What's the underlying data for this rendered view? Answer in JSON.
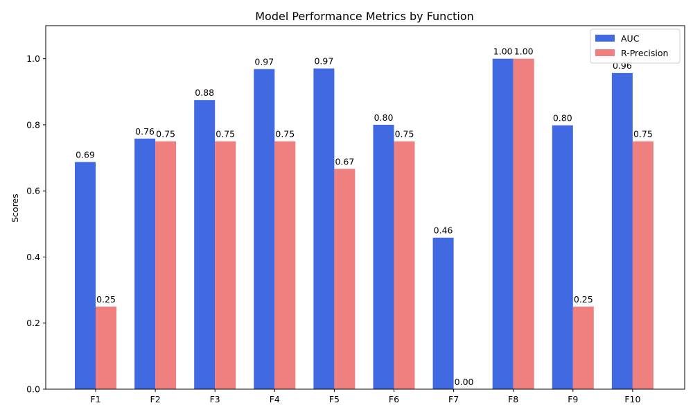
{
  "chart_data": {
    "type": "bar",
    "title": "Model Performance Metrics by Function",
    "xlabel": "",
    "ylabel": "Scores",
    "ylim": [
      0,
      1.1
    ],
    "yticks": [
      "0.0",
      "0.2",
      "0.4",
      "0.6",
      "0.8",
      "1.0"
    ],
    "categories": [
      "F1",
      "F2",
      "F3",
      "F4",
      "F5",
      "F6",
      "F7",
      "F8",
      "F9",
      "F10"
    ],
    "series": [
      {
        "name": "AUC",
        "color": "#4169e1",
        "values": [
          0.6875,
          0.7583,
          0.875,
          0.9688,
          0.9706,
          0.8,
          0.4583,
          1.0,
          0.7985,
          0.9571
        ],
        "labels": [
          "0.69",
          "0.76",
          "0.88",
          "0.97",
          "0.97",
          "0.80",
          "0.46",
          "1.00",
          "0.80",
          "0.96"
        ]
      },
      {
        "name": "R-Precision",
        "color": "#f08080",
        "values": [
          0.25,
          0.75,
          0.75,
          0.75,
          0.6667,
          0.75,
          0.0,
          1.0,
          0.25,
          0.75
        ],
        "labels": [
          "0.25",
          "0.75",
          "0.75",
          "0.75",
          "0.67",
          "0.75",
          "0.00",
          "1.00",
          "0.25",
          "0.75"
        ]
      }
    ],
    "legend": {
      "location": "top-right"
    },
    "grid": false
  }
}
